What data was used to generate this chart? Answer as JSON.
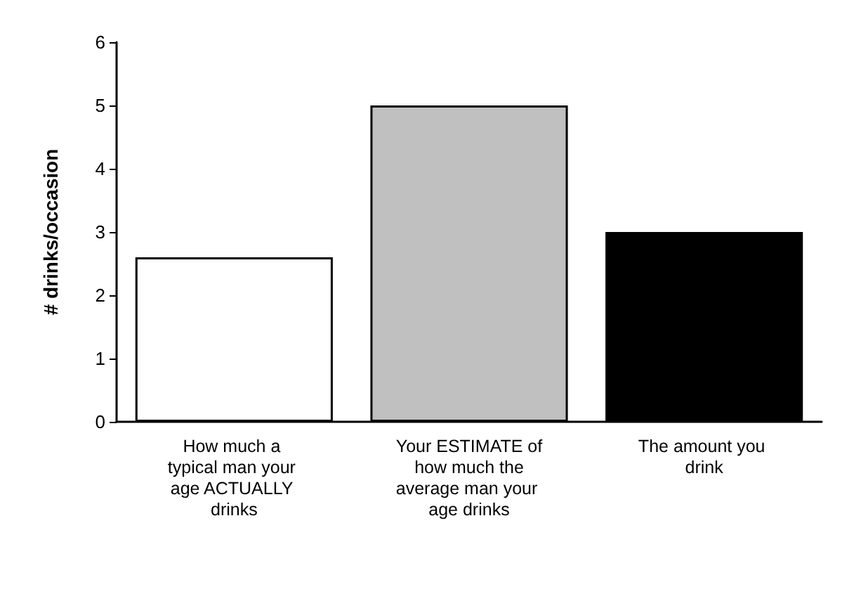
{
  "chart_data": {
    "type": "bar",
    "ylabel": "# drinks/occasion",
    "categories": [
      "How much a typical man your age ACTUALLY drinks",
      "Your ESTIMATE of how much the average man your age drinks",
      "The amount you drink"
    ],
    "values": [
      2.6,
      5,
      3
    ],
    "colors": [
      "#ffffff",
      "#c0c0c0",
      "#000000"
    ],
    "ylim": [
      0,
      6
    ],
    "yticks": [
      0,
      1,
      2,
      3,
      4,
      5,
      6
    ],
    "grid": false
  }
}
